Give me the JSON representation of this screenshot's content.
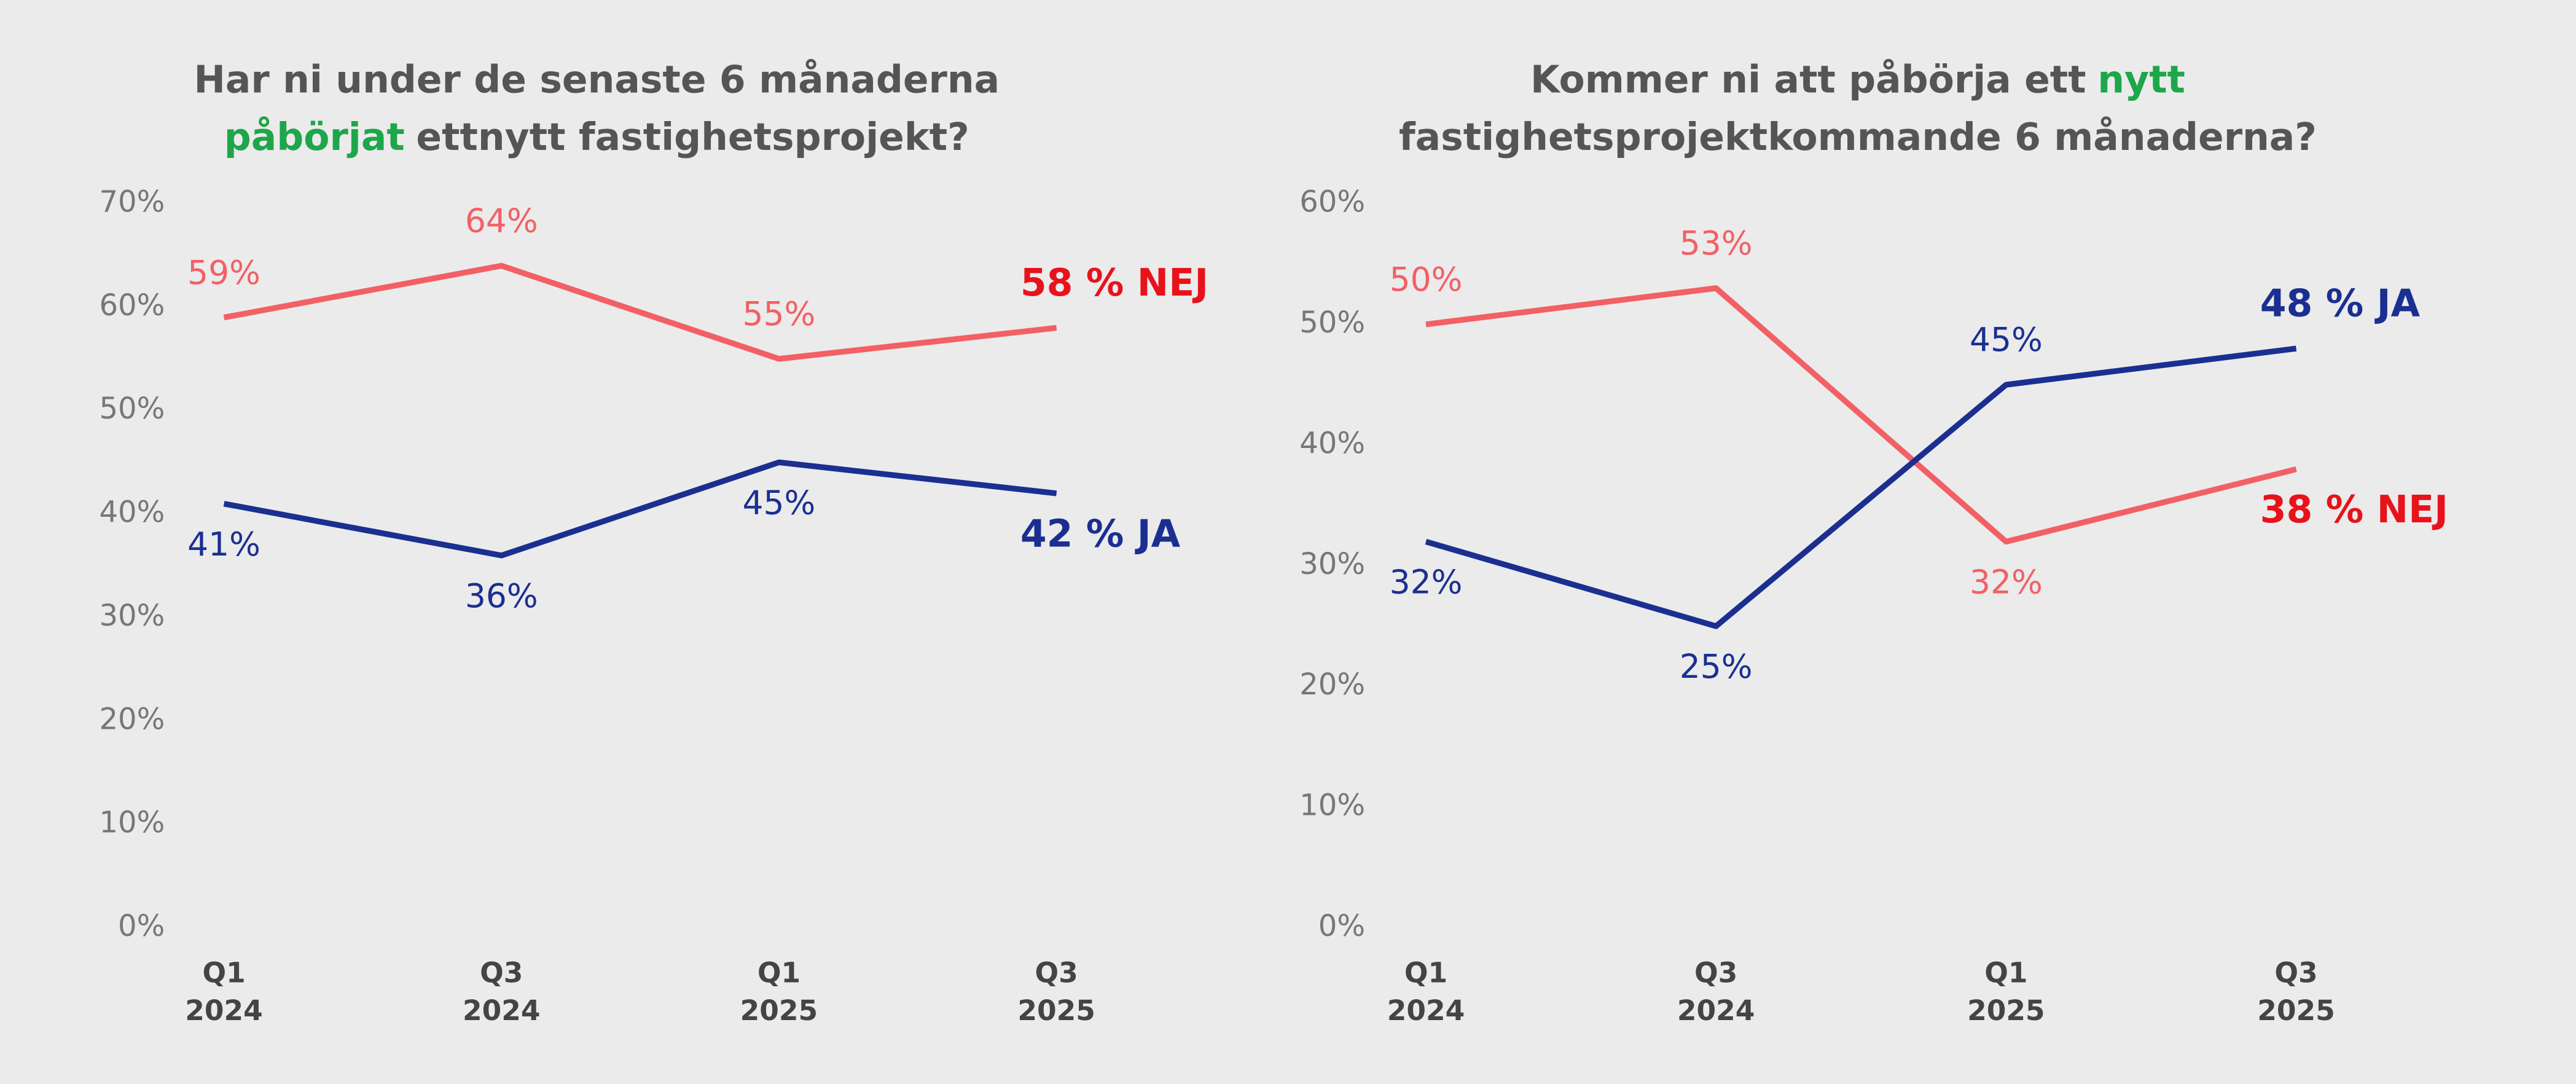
{
  "chart_data": [
    {
      "type": "line",
      "title_lines": [
        [
          {
            "text": "Har ni under de senaste 6 månaderna"
          }
        ],
        [
          {
            "text": "påbörjat",
            "color": "#1ea64a"
          },
          {
            "text": "ettnytt fastighetsprojekt?"
          }
        ]
      ],
      "categories": [
        "Q1\n2024",
        "Q3\n2024",
        "Q1\n2025",
        "Q3\n2025"
      ],
      "series": [
        {
          "name": "NEJ",
          "color": "#f26065",
          "label_color": "#e8121b",
          "values": [
            59,
            64,
            55,
            58
          ],
          "value_labels": [
            "59%",
            "64%",
            "55%",
            "58 %"
          ]
        },
        {
          "name": "JA",
          "color": "#1b2f91",
          "label_color": "#1b2f91",
          "values": [
            41,
            36,
            45,
            42
          ],
          "value_labels": [
            "41%",
            "36%",
            "45%",
            "42 %"
          ]
        }
      ],
      "ylim": [
        0,
        70
      ],
      "yticks": [
        {
          "value": 0,
          "label": "0%"
        },
        {
          "value": 10,
          "label": "10%"
        },
        {
          "value": 20,
          "label": "20%"
        },
        {
          "value": 30,
          "label": "30%"
        },
        {
          "value": 40,
          "label": "40%"
        },
        {
          "value": 50,
          "label": "50%"
        },
        {
          "value": 60,
          "label": "60%"
        },
        {
          "value": 70,
          "label": "70%"
        }
      ]
    },
    {
      "type": "line",
      "title_lines": [
        [
          {
            "text": "Kommer ni att påbörja ett"
          },
          {
            "text": "nytt",
            "color": "#1ea64a"
          }
        ],
        [
          {
            "text": "fastighetsprojektkommande 6 månaderna?"
          }
        ]
      ],
      "categories": [
        "Q1\n2024",
        "Q3\n2024",
        "Q1\n2025",
        "Q3\n2025"
      ],
      "series": [
        {
          "name": "NEJ",
          "color": "#f26065",
          "label_color": "#e8121b",
          "values": [
            50,
            53,
            32,
            38
          ],
          "value_labels": [
            "50%",
            "53%",
            "32%",
            "38 %"
          ]
        },
        {
          "name": "JA",
          "color": "#1b2f91",
          "label_color": "#1b2f91",
          "values": [
            32,
            25,
            45,
            48
          ],
          "value_labels": [
            "32%",
            "25%",
            "45%",
            "48 %"
          ]
        }
      ],
      "ylim": [
        0,
        60
      ],
      "yticks": [
        {
          "value": 0,
          "label": "0%"
        },
        {
          "value": 10,
          "label": "10%"
        },
        {
          "value": 20,
          "label": "20%"
        },
        {
          "value": 30,
          "label": "30%"
        },
        {
          "value": 40,
          "label": "40%"
        },
        {
          "value": 50,
          "label": "50%"
        },
        {
          "value": 60,
          "label": "60%"
        }
      ]
    }
  ]
}
